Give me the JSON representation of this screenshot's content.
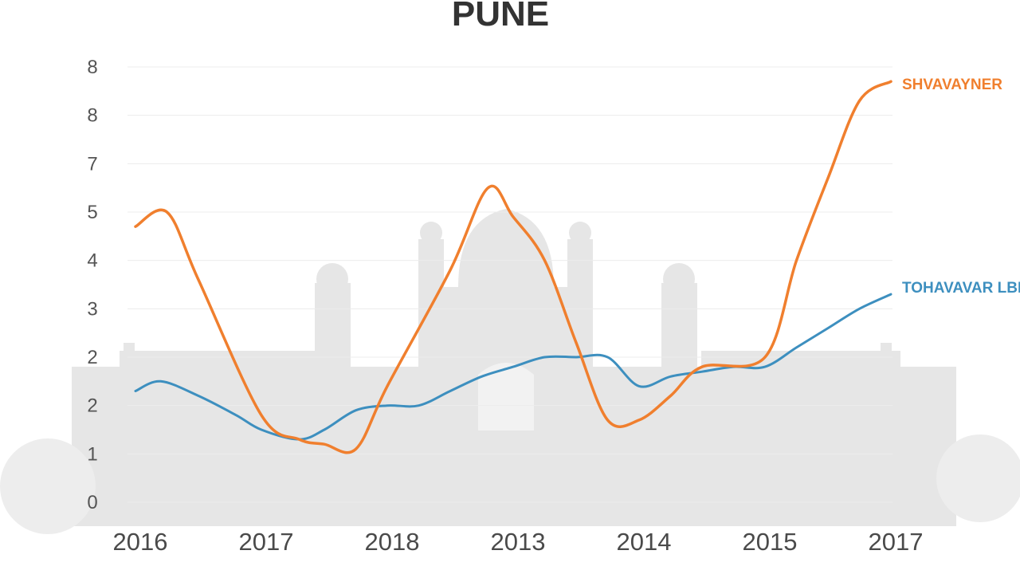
{
  "chart_data": {
    "type": "line",
    "title": "PUNE",
    "xlabel": "",
    "ylabel": "",
    "x_tick_labels": [
      "2016",
      "2017",
      "2018",
      "2013",
      "2014",
      "2015",
      "2017"
    ],
    "y_tick_labels": [
      "0",
      "1",
      "2",
      "2",
      "3",
      "4",
      "5",
      "7",
      "8",
      "8"
    ],
    "ylim": [
      0,
      9
    ],
    "grid": true,
    "legend": "right, at line ends",
    "series": [
      {
        "name": "SHVAVAYNER",
        "color": "#f07f2e",
        "x": [
          0,
          0.25,
          0.5,
          1,
          1.3,
          1.5,
          1.75,
          2,
          2.5,
          2.8,
          3,
          3.25,
          3.5,
          3.75,
          4,
          4.25,
          4.5,
          5,
          5.25,
          5.5,
          5.75,
          6
        ],
        "values": [
          5.7,
          6.0,
          4.6,
          1.8,
          1.3,
          1.2,
          1.1,
          2.4,
          4.8,
          6.5,
          5.9,
          5.0,
          3.3,
          1.7,
          1.7,
          2.2,
          2.8,
          3.0,
          5.0,
          6.7,
          8.3,
          8.7
        ]
      },
      {
        "name": "TOHAVAVAR LBR",
        "color": "#3d8fbf",
        "x": [
          0,
          0.2,
          0.5,
          0.8,
          1,
          1.3,
          1.5,
          1.75,
          2,
          2.25,
          2.5,
          2.75,
          3,
          3.25,
          3.5,
          3.75,
          4,
          4.25,
          4.5,
          4.75,
          5,
          5.25,
          5.5,
          5.75,
          6
        ],
        "values": [
          2.3,
          2.5,
          2.2,
          1.8,
          1.5,
          1.3,
          1.5,
          1.9,
          2.0,
          2.0,
          2.3,
          2.6,
          2.8,
          3.0,
          3.0,
          3.0,
          2.4,
          2.6,
          2.7,
          2.8,
          2.8,
          3.2,
          3.6,
          4.0,
          4.3
        ]
      }
    ]
  }
}
